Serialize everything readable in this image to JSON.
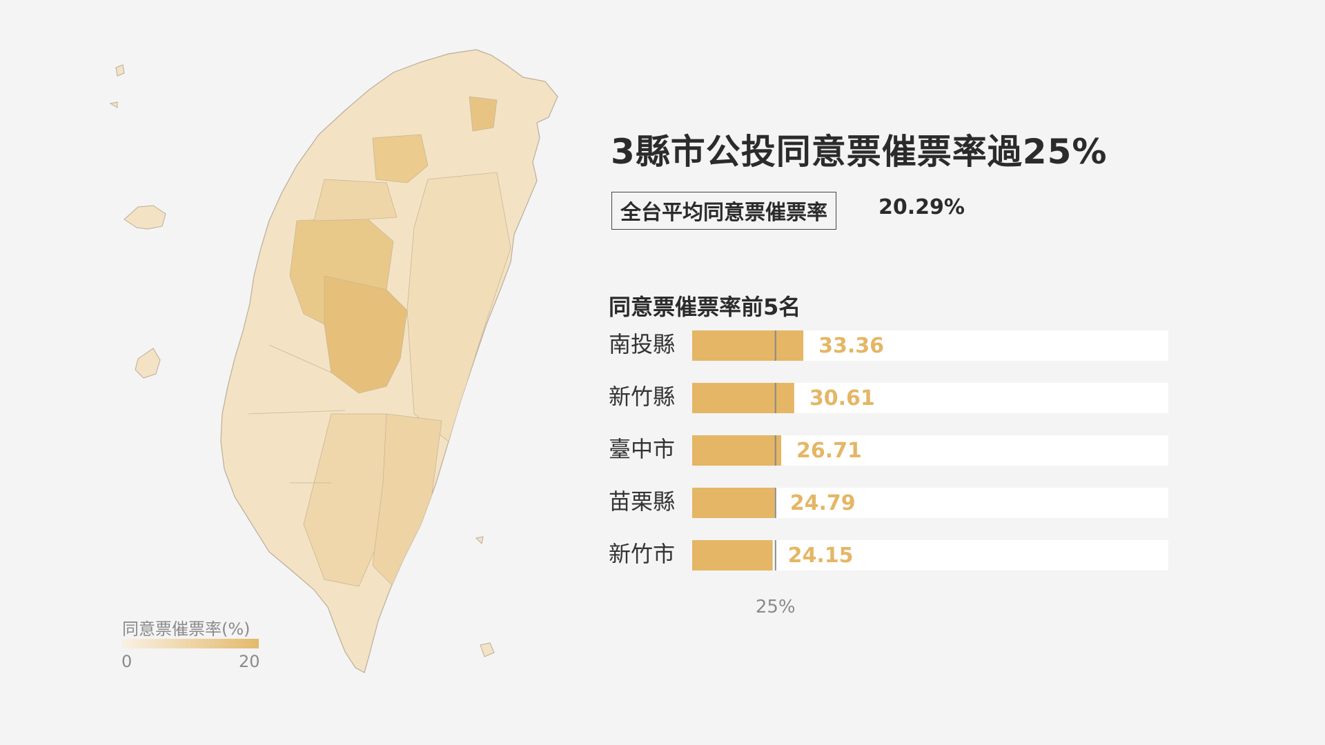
{
  "title": "3縣市公投同意票催票率過25%",
  "average": {
    "label": "全台平均同意票催票率",
    "value": "20.29%"
  },
  "ranking_title": "同意票催票率前5名",
  "legend": {
    "title": "同意票催票率(%)",
    "min": "0",
    "max": "20"
  },
  "colors": {
    "bar": "#e4b665",
    "bar_track": "#ffffff",
    "value_text": "#e4b665",
    "reference_line": "#888888",
    "map_light": "#f4e6cc",
    "map_dark": "#e4b96c"
  },
  "chart_data": {
    "type": "bar",
    "orientation": "horizontal",
    "categories": [
      "南投縣",
      "新竹縣",
      "臺中市",
      "苗栗縣",
      "新竹市"
    ],
    "values": [
      33.36,
      30.61,
      26.71,
      24.79,
      24.15
    ],
    "value_labels": [
      "33.36",
      "30.61",
      "26.71",
      "24.79",
      "24.15"
    ],
    "xlim": [
      0,
      100
    ],
    "reference_line": {
      "value": 25,
      "label": "25%"
    }
  }
}
